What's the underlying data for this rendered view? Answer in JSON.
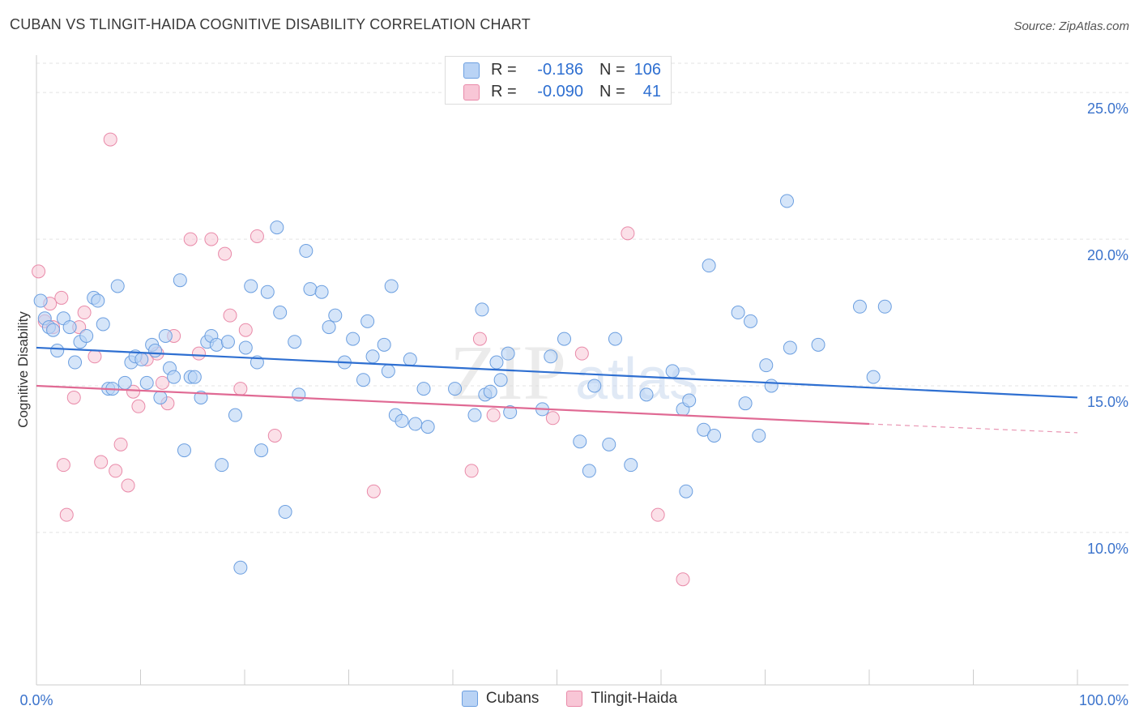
{
  "title": "CUBAN VS TLINGIT-HAIDA COGNITIVE DISABILITY CORRELATION CHART",
  "source": "Source: ZipAtlas.com",
  "watermark": {
    "text1": "ZIP",
    "text2": "atlas"
  },
  "legend": {
    "rows": [
      {
        "r_label": "R =",
        "r_value": "-0.186",
        "n_label": "N =",
        "n_value": "106"
      },
      {
        "r_label": "R =",
        "r_value": "-0.090",
        "n_label": "N =",
        "n_value": "41"
      }
    ]
  },
  "bottom_legend": [
    "Cubans",
    "Tlingit-Haida"
  ],
  "colors": {
    "cubans_fill": "#b9d3f5",
    "cubans_stroke": "#6c9fe0",
    "cubans_line": "#2e6fd1",
    "tlingit_fill": "#f8c6d6",
    "tlingit_stroke": "#e98aa9",
    "tlingit_line": "#e06a94",
    "tick_label": "#3b73cc",
    "grid": "#e3e3e3"
  },
  "chart_data": {
    "type": "scatter",
    "title": "CUBAN VS TLINGIT-HAIDA COGNITIVE DISABILITY CORRELATION CHART",
    "xlabel": "",
    "ylabel": "Cognitive Disability",
    "xlim": [
      0,
      100
    ],
    "ylim": [
      4.8,
      26.0
    ],
    "x_tick_labels": [
      "0.0%",
      "100.0%"
    ],
    "y_ticks": [
      10,
      15,
      20,
      25
    ],
    "y_tick_labels": [
      "10.0%",
      "15.0%",
      "20.0%",
      "25.0%"
    ],
    "grid": "horizontal dashed",
    "legend_position": "top-center",
    "series": [
      {
        "name": "Cubans",
        "r": -0.186,
        "n": 106,
        "trend": {
          "x": [
            0,
            100
          ],
          "y": [
            16.3,
            14.6
          ]
        },
        "points": [
          [
            0.4,
            17.9
          ],
          [
            0.8,
            17.3
          ],
          [
            1.2,
            17.0
          ],
          [
            1.6,
            16.9
          ],
          [
            2.0,
            16.2
          ],
          [
            2.6,
            17.3
          ],
          [
            3.2,
            17.0
          ],
          [
            3.7,
            15.8
          ],
          [
            4.2,
            16.5
          ],
          [
            4.8,
            16.7
          ],
          [
            5.5,
            18.0
          ],
          [
            5.9,
            17.9
          ],
          [
            6.4,
            17.1
          ],
          [
            6.9,
            14.9
          ],
          [
            7.3,
            14.9
          ],
          [
            7.8,
            18.4
          ],
          [
            8.5,
            15.1
          ],
          [
            9.1,
            15.8
          ],
          [
            9.5,
            16.0
          ],
          [
            10.1,
            15.9
          ],
          [
            10.6,
            15.1
          ],
          [
            11.1,
            16.4
          ],
          [
            11.4,
            16.2
          ],
          [
            11.9,
            14.6
          ],
          [
            12.4,
            16.7
          ],
          [
            12.8,
            15.6
          ],
          [
            13.2,
            15.3
          ],
          [
            13.8,
            18.6
          ],
          [
            14.2,
            12.8
          ],
          [
            14.8,
            15.3
          ],
          [
            15.2,
            15.3
          ],
          [
            15.8,
            14.6
          ],
          [
            16.4,
            16.5
          ],
          [
            16.8,
            16.7
          ],
          [
            17.3,
            16.4
          ],
          [
            17.8,
            12.3
          ],
          [
            18.4,
            16.5
          ],
          [
            19.1,
            14.0
          ],
          [
            19.6,
            8.8
          ],
          [
            20.1,
            16.3
          ],
          [
            20.6,
            18.4
          ],
          [
            21.2,
            15.8
          ],
          [
            21.6,
            12.8
          ],
          [
            22.2,
            18.2
          ],
          [
            23.1,
            20.4
          ],
          [
            23.4,
            17.5
          ],
          [
            23.9,
            10.7
          ],
          [
            24.8,
            16.5
          ],
          [
            25.2,
            14.7
          ],
          [
            25.9,
            19.6
          ],
          [
            26.3,
            18.3
          ],
          [
            27.4,
            18.2
          ],
          [
            28.1,
            17.0
          ],
          [
            28.7,
            17.4
          ],
          [
            29.6,
            15.8
          ],
          [
            30.4,
            16.6
          ],
          [
            31.4,
            15.2
          ],
          [
            31.8,
            17.2
          ],
          [
            32.3,
            16.0
          ],
          [
            33.4,
            16.4
          ],
          [
            34.1,
            18.4
          ],
          [
            34.5,
            14.0
          ],
          [
            35.1,
            13.8
          ],
          [
            35.9,
            15.9
          ],
          [
            36.4,
            13.7
          ],
          [
            37.6,
            13.6
          ],
          [
            40.2,
            14.9
          ],
          [
            42.1,
            14.0
          ],
          [
            42.8,
            17.6
          ],
          [
            43.1,
            14.7
          ],
          [
            43.6,
            14.8
          ],
          [
            44.2,
            15.8
          ],
          [
            44.6,
            15.2
          ],
          [
            45.3,
            16.1
          ],
          [
            45.5,
            14.1
          ],
          [
            48.6,
            14.2
          ],
          [
            49.4,
            16.0
          ],
          [
            50.7,
            16.6
          ],
          [
            52.2,
            13.1
          ],
          [
            53.1,
            12.1
          ],
          [
            53.6,
            15.0
          ],
          [
            55.0,
            13.0
          ],
          [
            55.6,
            16.6
          ],
          [
            57.1,
            12.3
          ],
          [
            58.6,
            14.7
          ],
          [
            61.1,
            15.5
          ],
          [
            62.1,
            14.2
          ],
          [
            62.4,
            11.4
          ],
          [
            62.7,
            14.5
          ],
          [
            64.1,
            13.5
          ],
          [
            64.6,
            19.1
          ],
          [
            65.1,
            13.3
          ],
          [
            67.4,
            17.5
          ],
          [
            68.1,
            14.4
          ],
          [
            68.6,
            17.2
          ],
          [
            69.4,
            13.3
          ],
          [
            70.1,
            15.7
          ],
          [
            70.6,
            15.0
          ],
          [
            72.1,
            21.3
          ],
          [
            75.1,
            16.4
          ],
          [
            79.1,
            17.7
          ],
          [
            80.4,
            15.3
          ],
          [
            81.5,
            17.7
          ],
          [
            72.4,
            16.3
          ],
          [
            37.2,
            14.9
          ],
          [
            33.8,
            15.5
          ]
        ]
      },
      {
        "name": "Tlingit-Haida",
        "r": -0.09,
        "n": 41,
        "trend": {
          "x": [
            0,
            80
          ],
          "y": [
            15.0,
            13.7
          ]
        },
        "trend_extension": {
          "x": [
            80,
            100
          ],
          "y": [
            13.7,
            13.4
          ]
        },
        "points": [
          [
            0.2,
            18.9
          ],
          [
            0.8,
            17.2
          ],
          [
            1.3,
            17.8
          ],
          [
            1.6,
            17.0
          ],
          [
            2.4,
            18.0
          ],
          [
            2.6,
            12.3
          ],
          [
            2.9,
            10.6
          ],
          [
            3.6,
            14.6
          ],
          [
            4.1,
            17.0
          ],
          [
            4.6,
            17.5
          ],
          [
            5.6,
            16.0
          ],
          [
            6.2,
            12.4
          ],
          [
            7.1,
            23.4
          ],
          [
            7.6,
            12.1
          ],
          [
            8.1,
            13.0
          ],
          [
            8.8,
            11.6
          ],
          [
            9.3,
            14.8
          ],
          [
            9.8,
            14.3
          ],
          [
            10.6,
            15.9
          ],
          [
            11.6,
            16.1
          ],
          [
            12.1,
            15.1
          ],
          [
            12.6,
            14.4
          ],
          [
            13.2,
            16.7
          ],
          [
            14.8,
            20.0
          ],
          [
            15.6,
            16.1
          ],
          [
            16.8,
            20.0
          ],
          [
            18.1,
            19.5
          ],
          [
            18.6,
            17.4
          ],
          [
            19.6,
            14.9
          ],
          [
            20.1,
            16.9
          ],
          [
            21.2,
            20.1
          ],
          [
            22.9,
            13.3
          ],
          [
            32.4,
            11.4
          ],
          [
            41.8,
            12.1
          ],
          [
            42.6,
            16.6
          ],
          [
            43.9,
            14.0
          ],
          [
            49.6,
            13.9
          ],
          [
            52.4,
            16.1
          ],
          [
            56.8,
            20.2
          ],
          [
            59.7,
            10.6
          ],
          [
            62.1,
            8.4
          ]
        ]
      }
    ]
  }
}
